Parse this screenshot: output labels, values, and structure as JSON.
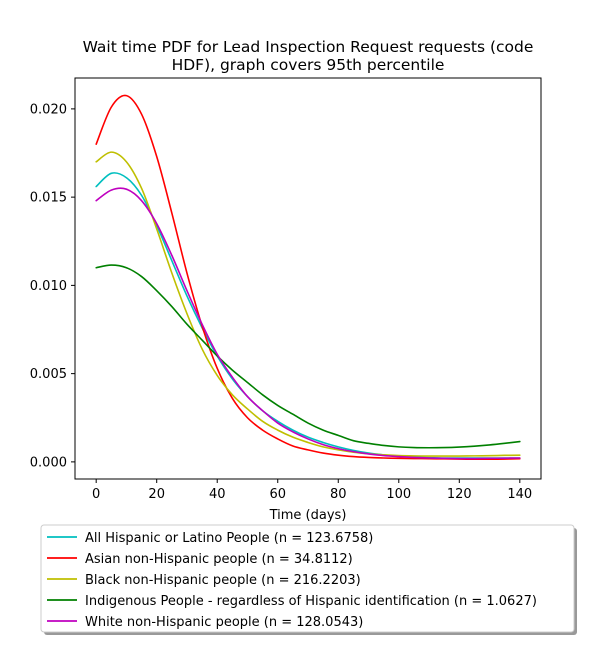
{
  "chart_data": {
    "type": "line",
    "title_lines": [
      "Wait time PDF for Lead Inspection Request  requests (code",
      "HDF), graph covers 95th percentile"
    ],
    "xlabel": "Time (days)",
    "ylabel": "",
    "xlim": [
      -7,
      147
    ],
    "ylim": [
      -0.00097,
      0.02175
    ],
    "x_ticks": [
      0,
      20,
      40,
      60,
      80,
      100,
      120,
      140
    ],
    "x_tick_labels": [
      "0",
      "20",
      "40",
      "60",
      "80",
      "100",
      "120",
      "140"
    ],
    "y_ticks": [
      0.0,
      0.005,
      0.01,
      0.015,
      0.02
    ],
    "y_tick_labels": [
      "0.000",
      "0.005",
      "0.010",
      "0.015",
      "0.020"
    ],
    "grid": false,
    "legend_position": "below",
    "x": [
      0,
      5,
      10,
      15,
      20,
      25,
      30,
      35,
      40,
      45,
      50,
      55,
      60,
      65,
      70,
      75,
      80,
      85,
      90,
      95,
      100,
      105,
      110,
      115,
      120,
      125,
      130,
      135,
      140
    ],
    "series": [
      {
        "name": "All Hispanic or Latino People (n = 123.6758)",
        "color": "#00bfbf",
        "values": [
          0.0156,
          0.01635,
          0.0161,
          0.0151,
          0.0134,
          0.0114,
          0.0094,
          0.0076,
          0.006,
          0.0047,
          0.0037,
          0.0029,
          0.0023,
          0.0018,
          0.0014,
          0.0011,
          0.00085,
          0.00065,
          0.0005,
          0.0004,
          0.00032,
          0.00027,
          0.00024,
          0.00022,
          0.00022,
          0.00022,
          0.00022,
          0.00022,
          0.00022
        ]
      },
      {
        "name": "Asian non-Hispanic people (n = 34.8112)",
        "color": "#ff0000",
        "values": [
          0.018,
          0.0201,
          0.02075,
          0.0197,
          0.0173,
          0.0141,
          0.0107,
          0.0077,
          0.0053,
          0.0036,
          0.0025,
          0.0018,
          0.0013,
          0.0009,
          0.00068,
          0.0005,
          0.00038,
          0.0003,
          0.00025,
          0.00022,
          0.0002,
          0.00019,
          0.00018,
          0.00017,
          0.00016,
          0.00015,
          0.00015,
          0.00016,
          0.00018
        ]
      },
      {
        "name": "Black non-Hispanic people (n = 216.2203)",
        "color": "#bfbf00",
        "values": [
          0.017,
          0.01755,
          0.017,
          0.0155,
          0.0132,
          0.0107,
          0.0084,
          0.0064,
          0.0049,
          0.0038,
          0.003,
          0.0023,
          0.0018,
          0.0014,
          0.0011,
          0.00085,
          0.00068,
          0.00055,
          0.00046,
          0.0004,
          0.00036,
          0.00034,
          0.00033,
          0.00033,
          0.00033,
          0.00034,
          0.00035,
          0.00037,
          0.00038
        ]
      },
      {
        "name": "Indigenous People - regardless of Hispanic identification (n = 1.0627)",
        "color": "#008000",
        "values": [
          0.011,
          0.01115,
          0.011,
          0.0105,
          0.0097,
          0.0088,
          0.0078,
          0.0069,
          0.006,
          0.0052,
          0.0045,
          0.0038,
          0.0032,
          0.0027,
          0.0022,
          0.0018,
          0.0015,
          0.0012,
          0.00105,
          0.00093,
          0.00085,
          0.00081,
          0.0008,
          0.00081,
          0.00084,
          0.00089,
          0.00096,
          0.00105,
          0.00115
        ]
      },
      {
        "name": "White non-Hispanic people (n = 128.0543)",
        "color": "#bf00bf",
        "values": [
          0.0148,
          0.0154,
          0.01545,
          0.0148,
          0.0135,
          0.0117,
          0.0097,
          0.0078,
          0.0061,
          0.0048,
          0.0037,
          0.0029,
          0.0022,
          0.0017,
          0.0013,
          0.00098,
          0.00075,
          0.00058,
          0.00045,
          0.00036,
          0.0003,
          0.00025,
          0.00022,
          0.0002,
          0.00019,
          0.00019,
          0.0002,
          0.00021,
          0.00022
        ]
      }
    ]
  }
}
